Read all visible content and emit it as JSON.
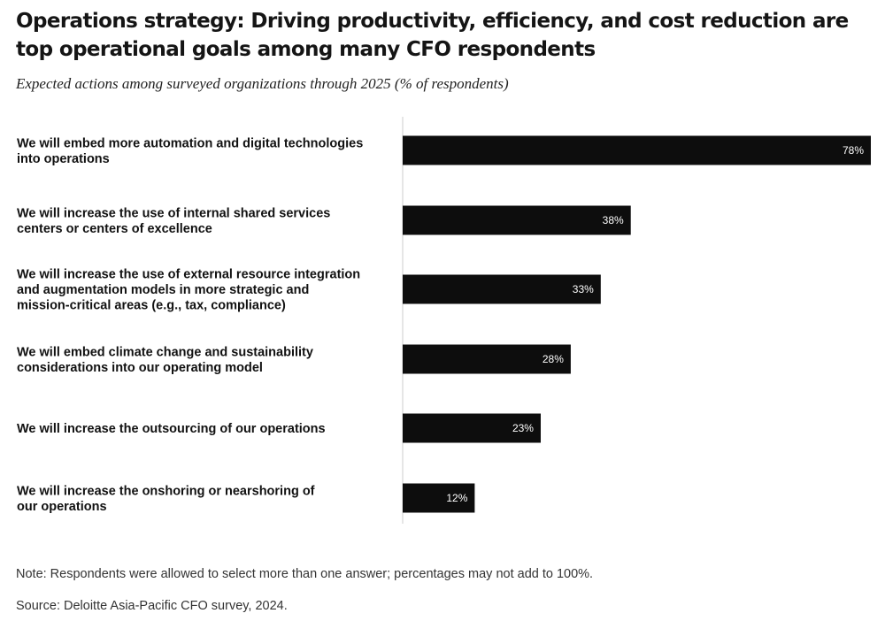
{
  "title": "Operations strategy: Driving productivity, efficiency, and cost reduction are top operational goals among many CFO respondents",
  "subtitle": "Expected actions among surveyed organizations through 2025 (% of respondents)",
  "note": "Note: Respondents were allowed to select more than one answer; percentages may not add to 100%.",
  "source": "Source: Deloitte Asia-Pacific CFO survey, 2024.",
  "colors": {
    "bar": "#0d0d0d",
    "axis": "#cccccc",
    "bar_label": "#ffffff"
  },
  "chart_data": {
    "type": "bar",
    "orientation": "horizontal",
    "categories": [
      [
        "We will embed more automation and digital technologies",
        "into operations"
      ],
      [
        "We will increase the use of internal shared services",
        "centers or centers of excellence"
      ],
      [
        "We will increase the use of external resource integration",
        "and augmentation models in more strategic and",
        "mission-critical areas (e.g., tax, compliance)"
      ],
      [
        "We will embed climate change and sustainability",
        "considerations into our operating model"
      ],
      [
        "We will increase the outsourcing of our operations"
      ],
      [
        "We will increase the onshoring or nearshoring of",
        "our operations"
      ]
    ],
    "values": [
      78,
      38,
      33,
      28,
      23,
      12
    ],
    "value_labels": [
      "78%",
      "38%",
      "33%",
      "28%",
      "23%",
      "12%"
    ],
    "unit": "%",
    "xlim": [
      0,
      78
    ],
    "grid": false,
    "legend": "none"
  }
}
